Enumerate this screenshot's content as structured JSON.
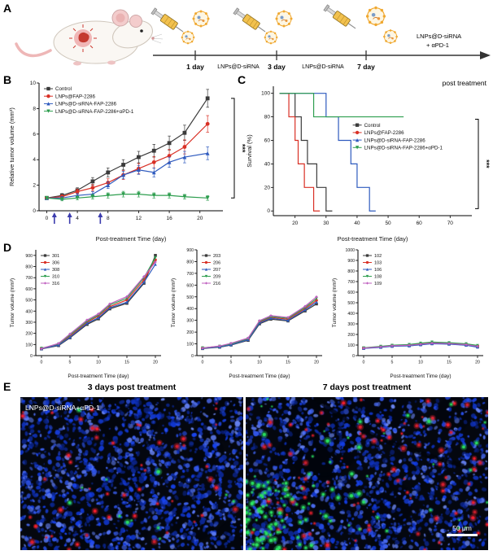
{
  "panel_labels": {
    "a": "A",
    "b": "B",
    "c": "C",
    "d": "D",
    "e": "E"
  },
  "colors": {
    "control": "#3b3b3b",
    "red": "#d93025",
    "blue": "#2f5bbf",
    "green": "#2e9e4f",
    "magenta": "#bf5fbf",
    "arrow": "#3c3cae"
  },
  "panel_a": {
    "tick1": "1 day",
    "tick2": "3 day",
    "tick3": "7 day",
    "inject1": "LNPs@D-siRNA",
    "inject2": "LNPs@D-siRNA",
    "inject3_line1": "LNPs@D-siRNA",
    "inject3_line2": "+ αPD-1",
    "post_label": "post treatment"
  },
  "chart_data": [
    {
      "id": "B",
      "type": "line",
      "xlabel": "Post-treatment Time (day)",
      "ylabel": "Relative tumor volume (mm³)",
      "xlim": [
        -1,
        23
      ],
      "ylim": [
        0,
        10
      ],
      "xticks": [
        0,
        4,
        8,
        12,
        16,
        20
      ],
      "yticks": [
        0,
        2,
        4,
        6,
        8,
        10
      ],
      "x": [
        0,
        2,
        4,
        6,
        8,
        10,
        12,
        14,
        16,
        18,
        21
      ],
      "series": [
        {
          "name": "Control",
          "color": "control",
          "marker": "square",
          "values": [
            1.0,
            1.2,
            1.6,
            2.3,
            3.0,
            3.6,
            4.2,
            4.7,
            5.3,
            6.1,
            8.8
          ],
          "err": [
            0.1,
            0.15,
            0.2,
            0.3,
            0.35,
            0.4,
            0.45,
            0.5,
            0.55,
            0.6,
            0.7
          ]
        },
        {
          "name": "LNPs@FAP-2286",
          "color": "red",
          "marker": "circle",
          "values": [
            1.0,
            1.1,
            1.5,
            1.8,
            2.2,
            2.8,
            3.3,
            3.8,
            4.3,
            5.0,
            6.8
          ],
          "err": [
            0.1,
            0.15,
            0.2,
            0.25,
            0.3,
            0.35,
            0.4,
            0.45,
            0.5,
            0.55,
            0.65
          ]
        },
        {
          "name": "LNPs@D-siRNA-FAP-2286",
          "color": "blue",
          "marker": "triangle",
          "values": [
            1.0,
            1.0,
            1.2,
            1.3,
            2.0,
            2.8,
            3.2,
            3.0,
            3.8,
            4.2,
            4.5
          ],
          "err": [
            0.1,
            0.12,
            0.15,
            0.2,
            0.25,
            0.3,
            0.35,
            0.35,
            0.4,
            0.45,
            0.5
          ]
        },
        {
          "name": "LNPs@D-siRNA-FAP-2286+αPD-1",
          "color": "green",
          "marker": "tdown",
          "values": [
            1.0,
            0.9,
            1.0,
            1.1,
            1.2,
            1.3,
            1.3,
            1.2,
            1.2,
            1.1,
            1.0
          ],
          "err": [
            0.1,
            0.12,
            0.15,
            0.18,
            0.2,
            0.22,
            0.22,
            0.2,
            0.2,
            0.18,
            0.18
          ]
        }
      ],
      "legend_pos": "tl",
      "treatment_arrows": [
        1,
        3,
        7
      ],
      "sig": "***",
      "sig_span": [
        8.8,
        1.0
      ]
    },
    {
      "id": "C",
      "type": "step",
      "xlabel": "Post-treatment Time (day)",
      "ylabel": "Survival (%)",
      "xlim": [
        13,
        77
      ],
      "ylim": [
        -4,
        106
      ],
      "xticks": [
        20,
        30,
        40,
        50,
        60,
        70
      ],
      "yticks": [
        0,
        20,
        40,
        60,
        80,
        100
      ],
      "series": [
        {
          "name": "Control",
          "color": "control",
          "marker": "square",
          "points": [
            [
              15,
              100
            ],
            [
              20,
              100
            ],
            [
              20,
              80
            ],
            [
              22,
              80
            ],
            [
              22,
              60
            ],
            [
              24,
              60
            ],
            [
              24,
              40
            ],
            [
              27,
              40
            ],
            [
              27,
              20
            ],
            [
              30,
              20
            ],
            [
              30,
              0
            ],
            [
              32,
              0
            ]
          ]
        },
        {
          "name": "LNPs@FAP-2286",
          "color": "red",
          "marker": "circle",
          "points": [
            [
              15,
              100
            ],
            [
              18,
              100
            ],
            [
              18,
              80
            ],
            [
              20,
              80
            ],
            [
              20,
              60
            ],
            [
              21,
              60
            ],
            [
              21,
              40
            ],
            [
              23,
              40
            ],
            [
              23,
              20
            ],
            [
              26,
              20
            ],
            [
              26,
              0
            ],
            [
              28,
              0
            ]
          ]
        },
        {
          "name": "LNPs@D-siRNA-FAP-2286",
          "color": "blue",
          "marker": "triangle",
          "points": [
            [
              15,
              100
            ],
            [
              30,
              100
            ],
            [
              30,
              80
            ],
            [
              34,
              80
            ],
            [
              34,
              60
            ],
            [
              38,
              60
            ],
            [
              38,
              40
            ],
            [
              40,
              40
            ],
            [
              40,
              20
            ],
            [
              44,
              20
            ],
            [
              44,
              0
            ],
            [
              46,
              0
            ]
          ]
        },
        {
          "name": "LNPs@D-siRNA-FAP-2286+αPD-1",
          "color": "green",
          "marker": "tdown",
          "points": [
            [
              15,
              100
            ],
            [
              26,
              100
            ],
            [
              26,
              80
            ],
            [
              55,
              80
            ]
          ]
        }
      ],
      "legend_pos": "mr",
      "sig": "***",
      "sig_span": [
        78,
        2
      ]
    },
    {
      "id": "D1",
      "type": "line",
      "xlabel": "Post-treatment Time (day)",
      "ylabel": "Tumor volume (mm³)",
      "xlim": [
        -1,
        21
      ],
      "ylim": [
        0,
        950
      ],
      "xticks": [
        0,
        5,
        10,
        15,
        20
      ],
      "yticks": [
        0,
        100,
        200,
        300,
        400,
        500,
        600,
        700,
        800,
        900
      ],
      "x": [
        0,
        3,
        5,
        8,
        10,
        12,
        15,
        18,
        20
      ],
      "series": [
        {
          "name": "301",
          "color": "control",
          "marker": "square",
          "values": [
            60,
            90,
            160,
            280,
            330,
            420,
            470,
            650,
            900
          ]
        },
        {
          "name": "306",
          "color": "red",
          "marker": "circle",
          "values": [
            65,
            100,
            175,
            300,
            355,
            440,
            500,
            680,
            860
          ]
        },
        {
          "name": "308",
          "color": "blue",
          "marker": "triangle",
          "values": [
            62,
            95,
            165,
            290,
            340,
            430,
            480,
            660,
            820
          ]
        },
        {
          "name": "310",
          "color": "green",
          "marker": "tdown",
          "values": [
            66,
            105,
            185,
            310,
            365,
            455,
            515,
            700,
            880
          ]
        },
        {
          "name": "316",
          "color": "magenta",
          "marker": "diamond",
          "values": [
            63,
            110,
            195,
            320,
            375,
            465,
            530,
            710,
            840
          ]
        }
      ],
      "legend_pos": "tl"
    },
    {
      "id": "D2",
      "type": "line",
      "xlabel": "Post-treatment Time (day)",
      "ylabel": "Tumor volume (mm³)",
      "xlim": [
        -1,
        21
      ],
      "ylim": [
        0,
        900
      ],
      "xticks": [
        0,
        5,
        10,
        15,
        20
      ],
      "yticks": [
        0,
        100,
        200,
        300,
        400,
        500,
        600,
        700,
        800,
        900
      ],
      "x": [
        0,
        3,
        5,
        8,
        10,
        12,
        15,
        18,
        20
      ],
      "series": [
        {
          "name": "203",
          "color": "control",
          "marker": "square",
          "values": [
            60,
            72,
            90,
            130,
            270,
            310,
            295,
            380,
            440
          ]
        },
        {
          "name": "206",
          "color": "red",
          "marker": "circle",
          "values": [
            65,
            78,
            95,
            140,
            285,
            325,
            310,
            400,
            470
          ]
        },
        {
          "name": "207",
          "color": "blue",
          "marker": "triangle",
          "values": [
            62,
            74,
            92,
            135,
            278,
            318,
            300,
            390,
            455
          ]
        },
        {
          "name": "209",
          "color": "green",
          "marker": "tdown",
          "values": [
            66,
            80,
            100,
            145,
            292,
            332,
            318,
            410,
            485
          ]
        },
        {
          "name": "216",
          "color": "magenta",
          "marker": "diamond",
          "values": [
            64,
            82,
            105,
            150,
            298,
            340,
            325,
            420,
            500
          ]
        }
      ],
      "legend_pos": "tl"
    },
    {
      "id": "D3",
      "type": "line",
      "xlabel": "Post-treatment Time (day)",
      "ylabel": "Tumor volume (mm³)",
      "xlim": [
        -1,
        21
      ],
      "ylim": [
        0,
        1000
      ],
      "xticks": [
        0,
        5,
        10,
        15,
        20
      ],
      "yticks": [
        0,
        100,
        200,
        300,
        400,
        500,
        600,
        700,
        800,
        900,
        1000
      ],
      "x": [
        0,
        3,
        5,
        8,
        10,
        12,
        15,
        18,
        20
      ],
      "series": [
        {
          "name": "102",
          "color": "control",
          "marker": "square",
          "values": [
            70,
            80,
            90,
            95,
            105,
            115,
            110,
            100,
            85
          ]
        },
        {
          "name": "103",
          "color": "red",
          "marker": "circle",
          "values": [
            72,
            85,
            95,
            100,
            112,
            122,
            118,
            108,
            92
          ]
        },
        {
          "name": "106",
          "color": "blue",
          "marker": "triangle",
          "values": [
            68,
            78,
            88,
            92,
            102,
            112,
            108,
            98,
            80
          ]
        },
        {
          "name": "108",
          "color": "green",
          "marker": "tdown",
          "values": [
            74,
            88,
            98,
            105,
            118,
            128,
            122,
            112,
            96
          ]
        },
        {
          "name": "109",
          "color": "magenta",
          "marker": "diamond",
          "values": [
            71,
            83,
            93,
            98,
            108,
            118,
            114,
            104,
            88
          ]
        }
      ],
      "legend_pos": "tl"
    }
  ],
  "panel_e": {
    "title_left": "3 days post treatment",
    "title_right": "7 days post treatment",
    "overlay": "LNPs@D-siRNA+αPD-1",
    "scalebar": "50 μm"
  }
}
